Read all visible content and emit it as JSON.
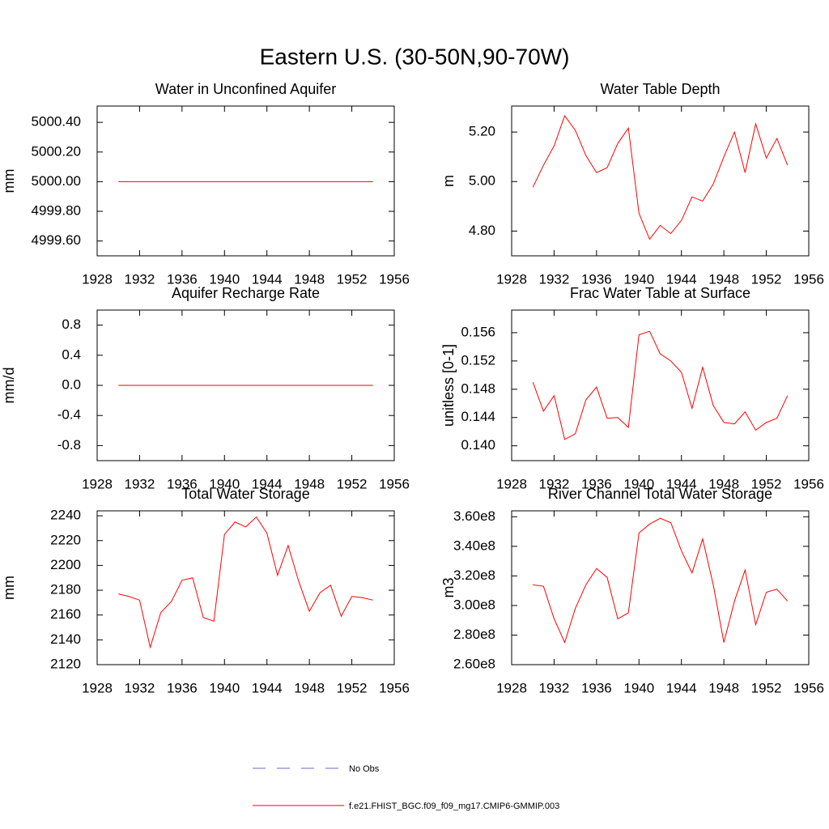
{
  "title": "Eastern U.S. (30-50N,90-70W)",
  "legend": [
    {
      "label": "No Obs",
      "color": "#6a6ad0",
      "dash": true
    },
    {
      "label": "f.e21.FHIST_BGC.f09_f09_mg17.CMIP6-GMMIP.003",
      "color": "#ff0000",
      "dash": false
    }
  ],
  "chart_data": [
    {
      "type": "line",
      "title": "Water in Unconfined Aquifer",
      "y_label": "mm",
      "x": [
        1930,
        1931,
        1932,
        1933,
        1934,
        1935,
        1936,
        1937,
        1938,
        1939,
        1940,
        1941,
        1942,
        1943,
        1944,
        1945,
        1946,
        1947,
        1948,
        1949,
        1950,
        1951,
        1952,
        1953,
        1954
      ],
      "series": [
        {
          "color": "#ff0000",
          "values": [
            5000,
            5000,
            5000,
            5000,
            5000,
            5000,
            5000,
            5000,
            5000,
            5000,
            5000,
            5000,
            5000,
            5000,
            5000,
            5000,
            5000,
            5000,
            5000,
            5000,
            5000,
            5000,
            5000,
            5000,
            5000
          ]
        }
      ],
      "xlim": [
        1928,
        1956
      ],
      "xticks": [
        1928,
        1932,
        1936,
        1940,
        1944,
        1948,
        1952,
        1956
      ],
      "ylim": [
        4999.5,
        5000.51
      ],
      "yticks": [
        {
          "value": 4999.6,
          "label": "4999.60"
        },
        {
          "value": 4999.8,
          "label": "4999.80"
        },
        {
          "value": 5000,
          "label": "5000.00"
        },
        {
          "value": 5000.2,
          "label": "5000.20"
        },
        {
          "value": 5000.4,
          "label": "5000.40"
        }
      ]
    },
    {
      "type": "line",
      "title": "Water Table Depth",
      "y_label": "m",
      "x": [
        1930,
        1931,
        1932,
        1933,
        1934,
        1935,
        1936,
        1937,
        1938,
        1939,
        1940,
        1941,
        1942,
        1943,
        1944,
        1945,
        1946,
        1947,
        1948,
        1949,
        1950,
        1951,
        1952,
        1953,
        1954
      ],
      "series": [
        {
          "color": "#ff0000",
          "values": [
            4.977,
            5.066,
            5.144,
            5.266,
            5.207,
            5.105,
            5.036,
            5.056,
            5.154,
            5.216,
            4.872,
            4.767,
            4.823,
            4.79,
            4.843,
            4.938,
            4.921,
            4.99,
            5.1,
            5.2,
            5.036,
            5.233,
            5.095,
            5.174,
            5.066
          ]
        }
      ],
      "xlim": [
        1928,
        1956
      ],
      "xticks": [
        1928,
        1932,
        1936,
        1940,
        1944,
        1948,
        1952,
        1956
      ],
      "ylim": [
        4.7,
        5.305
      ],
      "yticks": [
        {
          "value": 4.8,
          "label": "4.80"
        },
        {
          "value": 5,
          "label": "5.00"
        },
        {
          "value": 5.2,
          "label": "5.20"
        }
      ]
    },
    {
      "type": "line",
      "title": "Aquifer Recharge Rate",
      "y_label": "mm/d",
      "x": [
        1930,
        1931,
        1932,
        1933,
        1934,
        1935,
        1936,
        1937,
        1938,
        1939,
        1940,
        1941,
        1942,
        1943,
        1944,
        1945,
        1946,
        1947,
        1948,
        1949,
        1950,
        1951,
        1952,
        1953,
        1954
      ],
      "series": [
        {
          "color": "#ff0000",
          "values": [
            0,
            0,
            0,
            0,
            0,
            0,
            0,
            0,
            0,
            0,
            0,
            0,
            0,
            0,
            0,
            0,
            0,
            0,
            0,
            0,
            0,
            0,
            0,
            0,
            0
          ]
        }
      ],
      "xlim": [
        1928,
        1956
      ],
      "xticks": [
        1928,
        1932,
        1936,
        1940,
        1944,
        1948,
        1952,
        1956
      ],
      "ylim": [
        -1.0,
        1.0
      ],
      "yticks": [
        -0.8,
        -0.4,
        {
          "value": 0,
          "label": "0.0"
        },
        0.4,
        0.8
      ]
    },
    {
      "type": "line",
      "title": "Frac Water Table at Surface",
      "y_label": "unitless [0-1]",
      "x": [
        1930,
        1931,
        1932,
        1933,
        1934,
        1935,
        1936,
        1937,
        1938,
        1939,
        1940,
        1941,
        1942,
        1943,
        1944,
        1945,
        1946,
        1947,
        1948,
        1949,
        1950,
        1951,
        1952,
        1953,
        1954
      ],
      "series": [
        {
          "color": "#ff0000",
          "values": [
            0.149,
            0.1449,
            0.1471,
            0.1409,
            0.1417,
            0.1465,
            0.1483,
            0.1439,
            0.144,
            0.1426,
            0.1557,
            0.1562,
            0.153,
            0.152,
            0.1504,
            0.1453,
            0.1511,
            0.1457,
            0.1433,
            0.1431,
            0.1448,
            0.1422,
            0.1433,
            0.1439,
            0.1471
          ]
        }
      ],
      "xlim": [
        1928,
        1956
      ],
      "xticks": [
        1928,
        1932,
        1936,
        1940,
        1944,
        1948,
        1952,
        1956
      ],
      "ylim": [
        0.1379,
        0.1592
      ],
      "yticks": [
        {
          "value": 0.14,
          "label": "0.140"
        },
        0.144,
        0.148,
        0.152,
        0.156
      ]
    },
    {
      "type": "line",
      "title": "Total Water Storage",
      "y_label": "mm",
      "x": [
        1930,
        1931,
        1932,
        1933,
        1934,
        1935,
        1936,
        1937,
        1938,
        1939,
        1940,
        1941,
        1942,
        1943,
        1944,
        1945,
        1946,
        1947,
        1948,
        1949,
        1950,
        1951,
        1952,
        1953,
        1954
      ],
      "series": [
        {
          "color": "#ff0000",
          "values": [
            2177,
            2175,
            2172,
            2134,
            2162,
            2171,
            2188,
            2190,
            2158,
            2155,
            2225,
            2235,
            2231,
            2239,
            2226,
            2192,
            2216,
            2187,
            2163,
            2178,
            2184,
            2159,
            2175,
            2174,
            2172
          ]
        }
      ],
      "xlim": [
        1928,
        1956
      ],
      "xticks": [
        1928,
        1932,
        1936,
        1940,
        1944,
        1948,
        1952,
        1956
      ],
      "ylim": [
        2120,
        2244
      ],
      "yticks": [
        2120,
        2140,
        2160,
        2180,
        2200,
        2220,
        2240
      ]
    },
    {
      "type": "line",
      "title": "River Channel Total Water Storage",
      "y_label": "m3",
      "x": [
        1930,
        1931,
        1932,
        1933,
        1934,
        1935,
        1936,
        1937,
        1938,
        1939,
        1940,
        1941,
        1942,
        1943,
        1944,
        1945,
        1946,
        1947,
        1948,
        1949,
        1950,
        1951,
        1952,
        1953,
        1954
      ],
      "series": [
        {
          "color": "#ff0000",
          "values": [
            314000000,
            313000000,
            291000000,
            275000000,
            298000000,
            314000000,
            325000000,
            319000000,
            291000000,
            295000000,
            349000000,
            355000000,
            359000000,
            356000000,
            337000000,
            322000000,
            345000000,
            314000000,
            275000000,
            303000000,
            324000000,
            287000000,
            309000000,
            311000000,
            303000000
          ]
        }
      ],
      "xlim": [
        1928,
        1956
      ],
      "xticks": [
        1928,
        1932,
        1936,
        1940,
        1944,
        1948,
        1952,
        1956
      ],
      "ylim": [
        260000000,
        364000000
      ],
      "yticks": [
        {
          "value": 260000000,
          "label": "2.60e8"
        },
        {
          "value": 280000000,
          "label": "2.80e8"
        },
        {
          "value": 300000000,
          "label": "3.00e8"
        },
        {
          "value": 320000000,
          "label": "3.20e8"
        },
        {
          "value": 340000000,
          "label": "3.40e8"
        },
        {
          "value": 360000000,
          "label": "3.60e8"
        }
      ]
    }
  ]
}
